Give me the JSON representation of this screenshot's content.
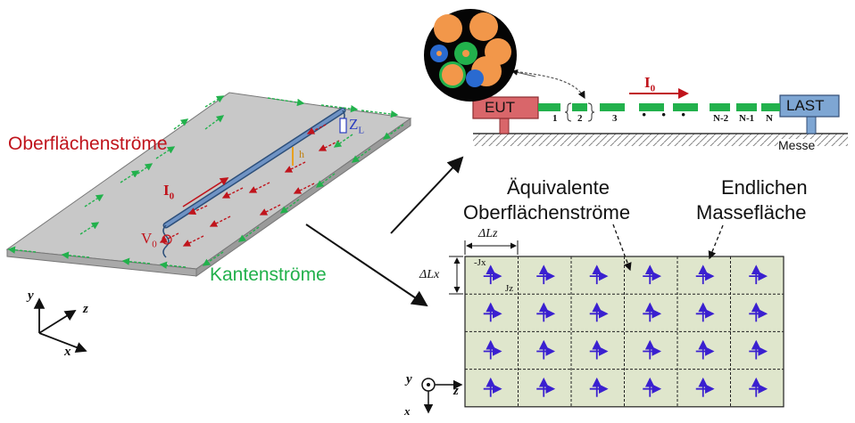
{
  "labels": {
    "surface_currents": "Oberflächenströme",
    "edge_currents": "Kantenströme",
    "equivalent_line1": "Äquivalente",
    "equivalent_line2": "Oberflächenströme",
    "finite_line1": "Endlichen",
    "finite_line2": "Massefläche",
    "eut": "EUT",
    "last": "LAST",
    "messe": "Messe",
    "current_symbol": "I",
    "current_sub": "0",
    "voltage_symbol": "V",
    "voltage_sub": "0",
    "impedance_symbol": "Z",
    "impedance_sub": "L",
    "height_symbol": "h",
    "delta_lz": "ΔLz",
    "delta_lx": "ΔLx",
    "jx_label": "-Jx",
    "jz_label": "Jz"
  },
  "segments": [
    "1",
    "2",
    "3",
    "·",
    "·",
    "·",
    "N-2",
    "N-1",
    "N"
  ],
  "axes3d": {
    "y": "y",
    "z": "z",
    "x": "x"
  },
  "axes2d": {
    "y": "y",
    "z": "z",
    "x": "x"
  },
  "grid": {
    "rows": 4,
    "cols": 6
  },
  "colors": {
    "red": "#c0141c",
    "green": "#22b14c",
    "plane": "#c8c8c8",
    "eut": "#d9666a",
    "last": "#7ea6d3",
    "grid_fill": "#dfe6cc",
    "arrow": "#3a20d0"
  }
}
